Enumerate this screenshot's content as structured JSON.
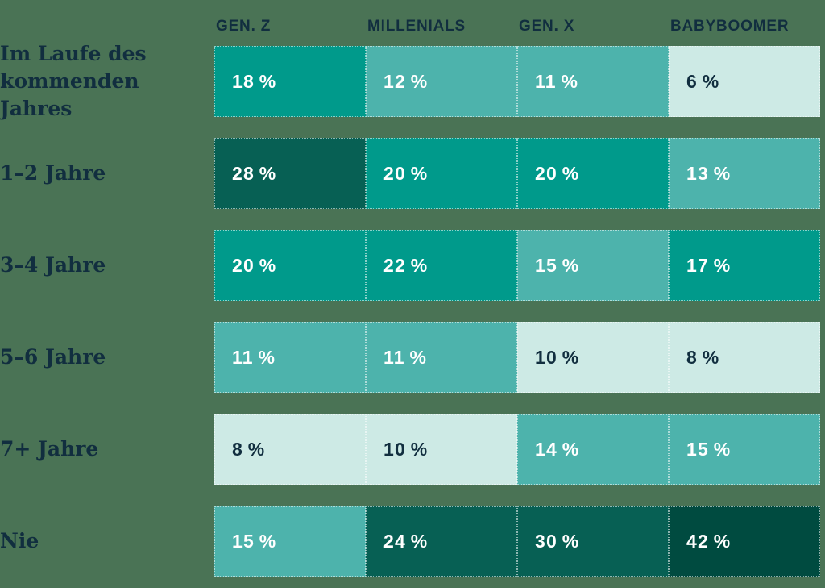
{
  "chart_data": {
    "type": "heatmap",
    "title": "",
    "columns": [
      "GEN. Z",
      "MILLENIALS",
      "GEN. X",
      "BABYBOOMER"
    ],
    "rows": [
      "Im Laufe des kommenden Jahres",
      "1–2 Jahre",
      "3–4 Jahre",
      "5–6 Jahre",
      "7+ Jahre",
      "Nie"
    ],
    "values": [
      [
        18,
        12,
        11,
        6
      ],
      [
        28,
        20,
        20,
        13
      ],
      [
        20,
        22,
        15,
        17
      ],
      [
        11,
        11,
        10,
        8
      ],
      [
        8,
        10,
        14,
        15
      ],
      [
        15,
        24,
        30,
        42
      ]
    ],
    "unit": "%",
    "layout": {
      "legend": "none",
      "grid": "off",
      "value_labels": "inside-left"
    }
  },
  "palette": {
    "background": "#4a7355",
    "header_text": "#112e3f",
    "label_text": "#112e3f",
    "cell_text_light": "#ffffff",
    "cell_text_dark": "#112e3f",
    "scale": [
      {
        "max": 10,
        "bg": "#cdeae5",
        "text": "dark"
      },
      {
        "max": 15,
        "bg": "#4db3ac",
        "text": "light"
      },
      {
        "max": 22,
        "bg": "#009a8b",
        "text": "light"
      },
      {
        "max": 30,
        "bg": "#076054",
        "text": "light"
      },
      {
        "max": 100,
        "bg": "#004b40",
        "text": "light"
      }
    ]
  }
}
